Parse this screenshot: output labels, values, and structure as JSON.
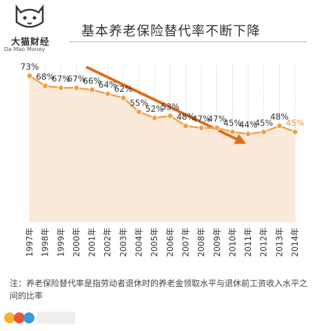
{
  "logo": {
    "cn": "大猫财经",
    "en": "Da Mao Money"
  },
  "title": "基本养老保险替代率不断下降",
  "note": "注：养老保险替代率是指劳动者退休时的养老金领取水平与退休前工资收入水平之间的比率",
  "colors": {
    "line": "#f0a04b",
    "fill": "#fbe9da",
    "arrow": "#e06c1a",
    "grid": "#c9c9c9",
    "text": "#333333",
    "highlight": "#e89a36"
  },
  "chart_data": {
    "type": "area",
    "categories": [
      "1997年",
      "1998年",
      "1999年",
      "2000年",
      "2001年",
      "2002年",
      "2003年",
      "2004年",
      "2005年",
      "2006年",
      "2007年",
      "2008年",
      "2009年",
      "2010年",
      "2011年",
      "2012年",
      "2013年",
      "2014年"
    ],
    "values": [
      73,
      68,
      67,
      67,
      66,
      64,
      62,
      55,
      52,
      53,
      48,
      47,
      47,
      45,
      44,
      45,
      48,
      45
    ],
    "data_labels": [
      "73%",
      "68%",
      "67%",
      "67%",
      "66%",
      "64%",
      "62%",
      "55%",
      "52%",
      "53%",
      "48%",
      "47%",
      "47%",
      "45%",
      "44%",
      "45%",
      "48%",
      "45%"
    ],
    "title": "基本养老保险替代率不断下降",
    "xlabel": "",
    "ylabel": "",
    "ylim": [
      0,
      80
    ],
    "grid": "vertical",
    "annotations": [
      "downward trend arrow"
    ]
  }
}
